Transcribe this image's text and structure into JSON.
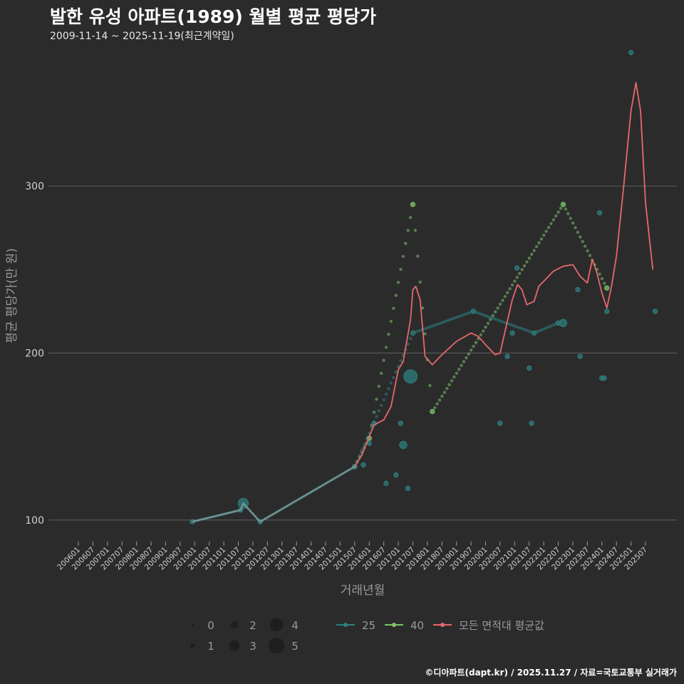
{
  "title": "발한 유성 아파트(1989) 월별 평균 평당가",
  "subtitle": "2009-11-14 ~ 2025-11-19(최근계약일)",
  "footer": "©디아파트(dapt.kr) / 2025.11.27 / 자료=국토교통부 실거래가",
  "colors": {
    "background": "#2b2b2c",
    "grid": "#5f5f5f",
    "series_25": "#2f7f7f",
    "series_40": "#7cc46a",
    "average": "#e8676b",
    "muted_text": "#9a9a9a"
  },
  "chart_data": {
    "type": "scatter",
    "xlabel": "거래년월",
    "ylabel": "평균 평당가(만 원)",
    "ylim": [
      88,
      385
    ],
    "y_ticks": [
      100,
      200,
      300
    ],
    "x_tick_labels": [
      "200601",
      "200607",
      "200701",
      "200707",
      "200801",
      "200807",
      "200901",
      "200907",
      "201001",
      "201007",
      "201101",
      "201107",
      "201201",
      "201207",
      "201301",
      "201307",
      "201401",
      "201407",
      "201501",
      "201507",
      "201601",
      "201607",
      "201701",
      "201707",
      "201801",
      "201807",
      "201901",
      "201907",
      "202001",
      "202007",
      "202101",
      "202107",
      "202201",
      "202207",
      "202301",
      "202307",
      "202401",
      "202407",
      "202501",
      "202507"
    ],
    "size_legend": {
      "title": "",
      "values": [
        0,
        1,
        2,
        3,
        4,
        5
      ]
    },
    "series": [
      {
        "name": "25",
        "color": "#2f7f7f",
        "points": [
          {
            "t": 2009.92,
            "v": 99,
            "n": 1
          },
          {
            "t": 2011.58,
            "v": 106,
            "n": 1
          },
          {
            "t": 2011.67,
            "v": 110,
            "n": 3
          },
          {
            "t": 2012.25,
            "v": 99,
            "n": 1
          },
          {
            "t": 2015.5,
            "v": 132,
            "n": 1
          },
          {
            "t": 2015.8,
            "v": 133,
            "n": 1
          },
          {
            "t": 2016.0,
            "v": 146,
            "n": 1
          },
          {
            "t": 2016.17,
            "v": 158,
            "n": 1
          },
          {
            "t": 2016.58,
            "v": 122,
            "n": 1
          },
          {
            "t": 2016.92,
            "v": 127,
            "n": 1
          },
          {
            "t": 2017.08,
            "v": 158,
            "n": 1
          },
          {
            "t": 2017.17,
            "v": 145,
            "n": 2
          },
          {
            "t": 2017.33,
            "v": 119,
            "n": 1
          },
          {
            "t": 2017.42,
            "v": 186,
            "n": 4
          },
          {
            "t": 2017.5,
            "v": 212,
            "n": 1
          },
          {
            "t": 2019.58,
            "v": 225,
            "n": 1
          },
          {
            "t": 2020.5,
            "v": 158,
            "n": 1
          },
          {
            "t": 2020.75,
            "v": 198,
            "n": 1
          },
          {
            "t": 2020.92,
            "v": 212,
            "n": 1
          },
          {
            "t": 2021.08,
            "v": 251,
            "n": 1
          },
          {
            "t": 2021.5,
            "v": 191,
            "n": 1
          },
          {
            "t": 2021.58,
            "v": 158,
            "n": 1
          },
          {
            "t": 2021.67,
            "v": 212,
            "n": 1
          },
          {
            "t": 2022.5,
            "v": 218,
            "n": 1
          },
          {
            "t": 2022.67,
            "v": 218,
            "n": 2
          },
          {
            "t": 2023.17,
            "v": 238,
            "n": 1
          },
          {
            "t": 2023.25,
            "v": 198,
            "n": 1
          },
          {
            "t": 2023.92,
            "v": 284,
            "n": 1
          },
          {
            "t": 2024.0,
            "v": 185,
            "n": 1
          },
          {
            "t": 2024.08,
            "v": 185,
            "n": 1
          },
          {
            "t": 2024.17,
            "v": 225,
            "n": 1
          },
          {
            "t": 2025.0,
            "v": 380,
            "n": 1
          },
          {
            "t": 2025.83,
            "v": 225,
            "n": 1
          }
        ],
        "connect": [
          [
            2009.92,
            99
          ],
          [
            2011.58,
            106
          ],
          [
            2011.67,
            110
          ],
          [
            2012.25,
            99
          ],
          [
            2015.5,
            132
          ],
          [
            2017.5,
            212
          ],
          [
            2019.58,
            225
          ],
          [
            2021.67,
            212
          ],
          [
            2022.5,
            218
          ]
        ]
      },
      {
        "name": "40",
        "color": "#7cc46a",
        "points": [
          {
            "t": 2015.5,
            "v": 132,
            "n": 1
          },
          {
            "t": 2016.0,
            "v": 149,
            "n": 1
          },
          {
            "t": 2017.5,
            "v": 289,
            "n": 1
          },
          {
            "t": 2018.17,
            "v": 165,
            "n": 1
          },
          {
            "t": 2022.67,
            "v": 289,
            "n": 1
          },
          {
            "t": 2024.17,
            "v": 239,
            "n": 1
          }
        ],
        "connect": [
          [
            2015.5,
            132
          ],
          [
            2016.0,
            149
          ],
          [
            2017.5,
            289
          ],
          [
            2018.17,
            165
          ],
          [
            2022.67,
            289
          ],
          [
            2024.17,
            239
          ]
        ]
      },
      {
        "name": "모든 면적대 평균값",
        "color": "#e8676b",
        "line": [
          [
            2015.5,
            132
          ],
          [
            2015.75,
            139
          ],
          [
            2016.0,
            150
          ],
          [
            2016.17,
            157
          ],
          [
            2016.5,
            160
          ],
          [
            2016.75,
            168
          ],
          [
            2017.0,
            190
          ],
          [
            2017.17,
            195
          ],
          [
            2017.42,
            220
          ],
          [
            2017.5,
            238
          ],
          [
            2017.6,
            240
          ],
          [
            2017.75,
            232
          ],
          [
            2017.92,
            198
          ],
          [
            2018.17,
            193
          ],
          [
            2018.5,
            199
          ],
          [
            2019.0,
            207
          ],
          [
            2019.5,
            212
          ],
          [
            2019.75,
            210
          ],
          [
            2020.0,
            205
          ],
          [
            2020.33,
            199
          ],
          [
            2020.5,
            200
          ],
          [
            2020.67,
            213
          ],
          [
            2020.92,
            232
          ],
          [
            2021.1,
            241
          ],
          [
            2021.25,
            238
          ],
          [
            2021.42,
            229
          ],
          [
            2021.67,
            231
          ],
          [
            2021.83,
            240
          ],
          [
            2022.0,
            243
          ],
          [
            2022.33,
            249
          ],
          [
            2022.67,
            252
          ],
          [
            2023.0,
            253
          ],
          [
            2023.25,
            246
          ],
          [
            2023.5,
            242
          ],
          [
            2023.67,
            256
          ],
          [
            2023.83,
            248
          ],
          [
            2024.0,
            236
          ],
          [
            2024.17,
            227
          ],
          [
            2024.33,
            240
          ],
          [
            2024.5,
            258
          ],
          [
            2024.75,
            300
          ],
          [
            2025.0,
            345
          ],
          [
            2025.17,
            362
          ],
          [
            2025.33,
            345
          ],
          [
            2025.5,
            290
          ],
          [
            2025.75,
            250
          ]
        ]
      }
    ]
  }
}
